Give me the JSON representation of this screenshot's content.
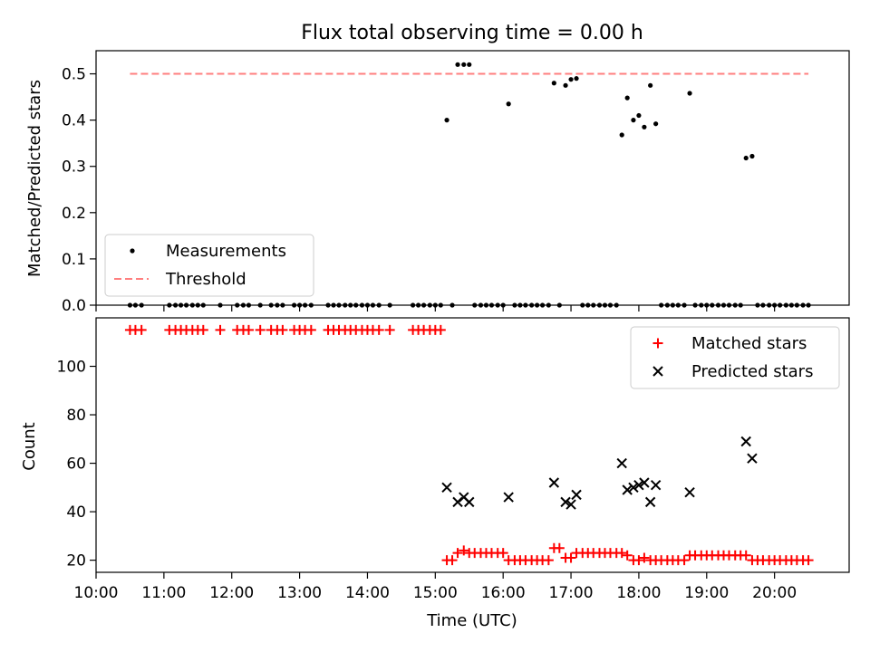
{
  "title": "Flux total observing time = 0.00 h",
  "xlabel": "Time (UTC)",
  "x_ticks": [
    "10:00",
    "11:00",
    "12:00",
    "13:00",
    "14:00",
    "15:00",
    "16:00",
    "17:00",
    "18:00",
    "19:00",
    "20:00"
  ],
  "colors": {
    "measurements": "#000000",
    "threshold": "#ff7f7f",
    "matched": "#ff0000",
    "predicted": "#000000"
  },
  "chart_data": [
    {
      "type": "scatter",
      "ylabel": "Matched/Predicted stars",
      "xlim": [
        10.0,
        21.1
      ],
      "ylim": [
        0,
        0.55
      ],
      "y_ticks": [
        "0.0",
        "0.1",
        "0.2",
        "0.3",
        "0.4",
        "0.5"
      ],
      "legend_position": "lower-left",
      "series": [
        {
          "name": "Measurements",
          "style": "dot",
          "points": [
            [
              15.17,
              0.4
            ],
            [
              15.33,
              0.52
            ],
            [
              15.42,
              0.52
            ],
            [
              15.5,
              0.52
            ],
            [
              16.08,
              0.435
            ],
            [
              16.75,
              0.48
            ],
            [
              16.92,
              0.475
            ],
            [
              17.0,
              0.488
            ],
            [
              17.08,
              0.49
            ],
            [
              17.75,
              0.368
            ],
            [
              17.83,
              0.448
            ],
            [
              17.92,
              0.4
            ],
            [
              18.0,
              0.41
            ],
            [
              18.08,
              0.385
            ],
            [
              18.17,
              0.475
            ],
            [
              18.25,
              0.392
            ],
            [
              18.75,
              0.458
            ],
            [
              19.58,
              0.318
            ],
            [
              19.67,
              0.322
            ],
            [
              10.5,
              0
            ],
            [
              10.58,
              0
            ],
            [
              10.67,
              0
            ],
            [
              11.08,
              0
            ],
            [
              11.17,
              0
            ],
            [
              11.25,
              0
            ],
            [
              11.33,
              0
            ],
            [
              11.42,
              0
            ],
            [
              11.5,
              0
            ],
            [
              11.58,
              0
            ],
            [
              11.83,
              0
            ],
            [
              12.08,
              0
            ],
            [
              12.17,
              0
            ],
            [
              12.25,
              0
            ],
            [
              12.42,
              0
            ],
            [
              12.58,
              0
            ],
            [
              12.67,
              0
            ],
            [
              12.75,
              0
            ],
            [
              12.92,
              0
            ],
            [
              13.0,
              0
            ],
            [
              13.08,
              0
            ],
            [
              13.17,
              0
            ],
            [
              13.42,
              0
            ],
            [
              13.5,
              0
            ],
            [
              13.58,
              0
            ],
            [
              13.67,
              0
            ],
            [
              13.75,
              0
            ],
            [
              13.83,
              0
            ],
            [
              13.92,
              0
            ],
            [
              14.0,
              0
            ],
            [
              14.08,
              0
            ],
            [
              14.17,
              0
            ],
            [
              14.33,
              0
            ],
            [
              14.67,
              0
            ],
            [
              14.75,
              0
            ],
            [
              14.83,
              0
            ],
            [
              14.92,
              0
            ],
            [
              15.0,
              0
            ],
            [
              15.08,
              0
            ],
            [
              15.25,
              0
            ],
            [
              15.58,
              0
            ],
            [
              15.67,
              0
            ],
            [
              15.75,
              0
            ],
            [
              15.83,
              0
            ],
            [
              15.92,
              0
            ],
            [
              16.0,
              0
            ],
            [
              16.17,
              0
            ],
            [
              16.25,
              0
            ],
            [
              16.33,
              0
            ],
            [
              16.42,
              0
            ],
            [
              16.5,
              0
            ],
            [
              16.58,
              0
            ],
            [
              16.67,
              0
            ],
            [
              16.83,
              0
            ],
            [
              17.17,
              0
            ],
            [
              17.25,
              0
            ],
            [
              17.33,
              0
            ],
            [
              17.42,
              0
            ],
            [
              17.5,
              0
            ],
            [
              17.58,
              0
            ],
            [
              17.67,
              0
            ],
            [
              18.33,
              0
            ],
            [
              18.42,
              0
            ],
            [
              18.5,
              0
            ],
            [
              18.58,
              0
            ],
            [
              18.67,
              0
            ],
            [
              18.83,
              0
            ],
            [
              18.92,
              0
            ],
            [
              19.0,
              0
            ],
            [
              19.08,
              0
            ],
            [
              19.17,
              0
            ],
            [
              19.25,
              0
            ],
            [
              19.33,
              0
            ],
            [
              19.42,
              0
            ],
            [
              19.5,
              0
            ],
            [
              19.75,
              0
            ],
            [
              19.83,
              0
            ],
            [
              19.92,
              0
            ],
            [
              20.0,
              0
            ],
            [
              20.08,
              0
            ],
            [
              20.17,
              0
            ],
            [
              20.25,
              0
            ],
            [
              20.33,
              0
            ],
            [
              20.42,
              0
            ],
            [
              20.5,
              0
            ]
          ]
        },
        {
          "name": "Threshold",
          "style": "dashed-line",
          "points": [
            [
              10.5,
              0.5
            ],
            [
              20.5,
              0.5
            ]
          ]
        }
      ]
    },
    {
      "type": "scatter",
      "ylabel": "Count",
      "xlim": [
        10.0,
        21.1
      ],
      "ylim": [
        15,
        120
      ],
      "y_ticks": [
        "20",
        "40",
        "60",
        "80",
        "100"
      ],
      "legend_position": "upper-right",
      "series": [
        {
          "name": "Matched stars",
          "marker": "plus",
          "points": [
            [
              10.5,
              115
            ],
            [
              10.58,
              115
            ],
            [
              10.67,
              115
            ],
            [
              11.08,
              115
            ],
            [
              11.17,
              115
            ],
            [
              11.25,
              115
            ],
            [
              11.33,
              115
            ],
            [
              11.42,
              115
            ],
            [
              11.5,
              115
            ],
            [
              11.58,
              115
            ],
            [
              11.83,
              115
            ],
            [
              12.08,
              115
            ],
            [
              12.17,
              115
            ],
            [
              12.25,
              115
            ],
            [
              12.42,
              115
            ],
            [
              12.58,
              115
            ],
            [
              12.67,
              115
            ],
            [
              12.75,
              115
            ],
            [
              12.92,
              115
            ],
            [
              13.0,
              115
            ],
            [
              13.08,
              115
            ],
            [
              13.17,
              115
            ],
            [
              13.42,
              115
            ],
            [
              13.5,
              115
            ],
            [
              13.58,
              115
            ],
            [
              13.67,
              115
            ],
            [
              13.75,
              115
            ],
            [
              13.83,
              115
            ],
            [
              13.92,
              115
            ],
            [
              14.0,
              115
            ],
            [
              14.08,
              115
            ],
            [
              14.17,
              115
            ],
            [
              14.33,
              115
            ],
            [
              14.67,
              115
            ],
            [
              14.75,
              115
            ],
            [
              14.83,
              115
            ],
            [
              14.92,
              115
            ],
            [
              15.0,
              115
            ],
            [
              15.08,
              115
            ],
            [
              15.17,
              20
            ],
            [
              15.25,
              20
            ],
            [
              15.33,
              23
            ],
            [
              15.42,
              24
            ],
            [
              15.5,
              23
            ],
            [
              15.58,
              23
            ],
            [
              15.67,
              23
            ],
            [
              15.75,
              23
            ],
            [
              15.83,
              23
            ],
            [
              15.92,
              23
            ],
            [
              16.0,
              23
            ],
            [
              16.08,
              20
            ],
            [
              16.17,
              20
            ],
            [
              16.25,
              20
            ],
            [
              16.33,
              20
            ],
            [
              16.42,
              20
            ],
            [
              16.5,
              20
            ],
            [
              16.58,
              20
            ],
            [
              16.67,
              20
            ],
            [
              16.75,
              25
            ],
            [
              16.83,
              25
            ],
            [
              16.92,
              21
            ],
            [
              17.0,
              21
            ],
            [
              17.08,
              23
            ],
            [
              17.17,
              23
            ],
            [
              17.25,
              23
            ],
            [
              17.33,
              23
            ],
            [
              17.42,
              23
            ],
            [
              17.5,
              23
            ],
            [
              17.58,
              23
            ],
            [
              17.67,
              23
            ],
            [
              17.75,
              23
            ],
            [
              17.83,
              22
            ],
            [
              17.92,
              20
            ],
            [
              18.0,
              20
            ],
            [
              18.08,
              21
            ],
            [
              18.17,
              20
            ],
            [
              18.25,
              20
            ],
            [
              18.33,
              20
            ],
            [
              18.42,
              20
            ],
            [
              18.5,
              20
            ],
            [
              18.58,
              20
            ],
            [
              18.67,
              20
            ],
            [
              18.75,
              22
            ],
            [
              18.83,
              22
            ],
            [
              18.92,
              22
            ],
            [
              19.0,
              22
            ],
            [
              19.08,
              22
            ],
            [
              19.17,
              22
            ],
            [
              19.25,
              22
            ],
            [
              19.33,
              22
            ],
            [
              19.42,
              22
            ],
            [
              19.5,
              22
            ],
            [
              19.58,
              22
            ],
            [
              19.67,
              20
            ],
            [
              19.75,
              20
            ],
            [
              19.83,
              20
            ],
            [
              19.92,
              20
            ],
            [
              20.0,
              20
            ],
            [
              20.08,
              20
            ],
            [
              20.17,
              20
            ],
            [
              20.25,
              20
            ],
            [
              20.33,
              20
            ],
            [
              20.42,
              20
            ],
            [
              20.5,
              20
            ]
          ]
        },
        {
          "name": "Predicted stars",
          "marker": "x",
          "points": [
            [
              15.17,
              50
            ],
            [
              15.33,
              44
            ],
            [
              15.42,
              46
            ],
            [
              15.5,
              44
            ],
            [
              16.08,
              46
            ],
            [
              16.75,
              52
            ],
            [
              16.92,
              44
            ],
            [
              17.0,
              43
            ],
            [
              17.08,
              47
            ],
            [
              17.75,
              60
            ],
            [
              17.83,
              49
            ],
            [
              17.92,
              50
            ],
            [
              18.0,
              51
            ],
            [
              18.08,
              52
            ],
            [
              18.17,
              44
            ],
            [
              18.25,
              51
            ],
            [
              18.75,
              48
            ],
            [
              19.58,
              69
            ],
            [
              19.67,
              62
            ]
          ]
        }
      ]
    }
  ]
}
